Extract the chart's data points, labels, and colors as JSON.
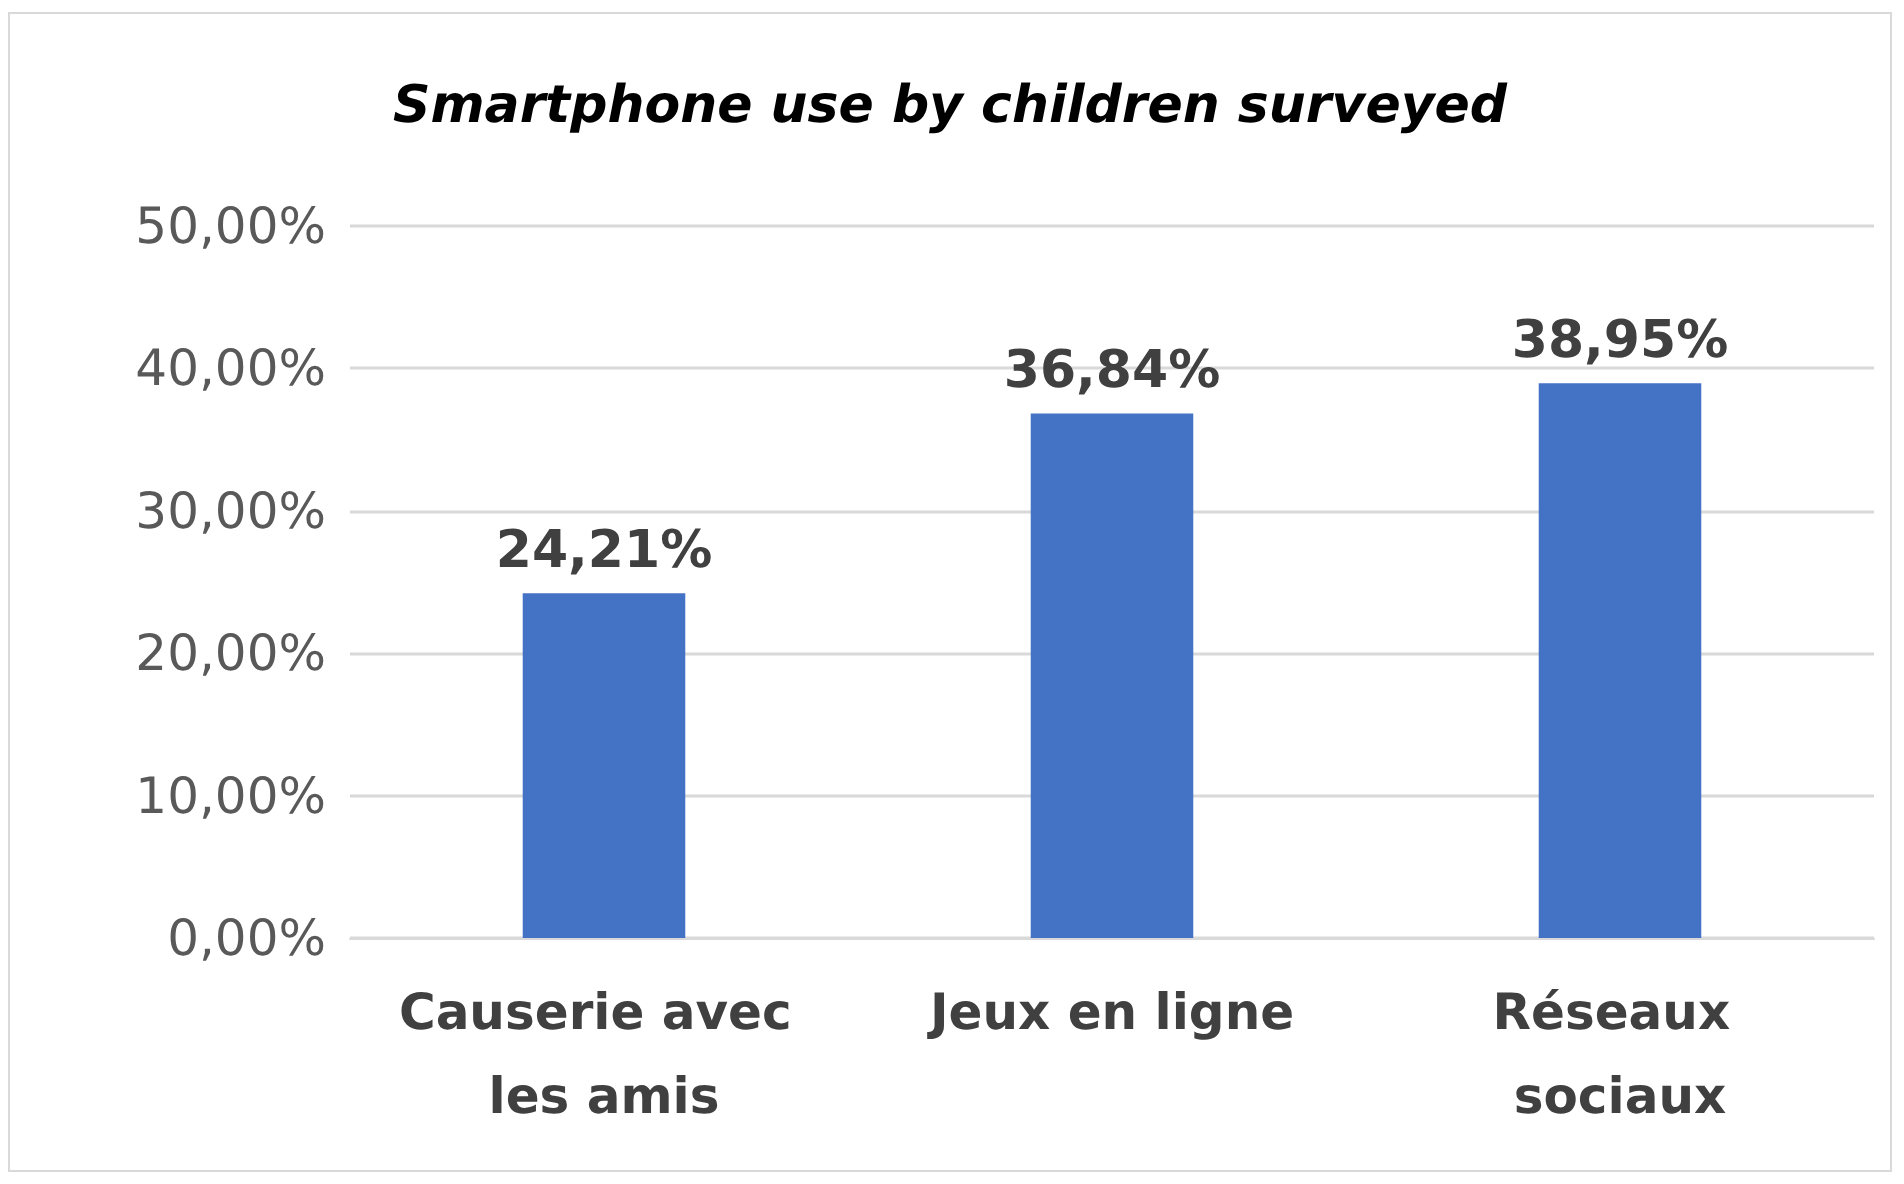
{
  "chart_data": {
    "type": "bar",
    "title": "Smartphone use by children surveyed",
    "categories": [
      "Causerie avec les amis",
      "Jeux en ligne",
      "Réseaux sociaux"
    ],
    "values": [
      24.21,
      36.84,
      38.95
    ],
    "color": "#4472c4",
    "value_labels": [
      "24,21%",
      "36,84%",
      "38,95%"
    ],
    "ylim": [
      0,
      50
    ],
    "yticks": [
      {
        "value": 0,
        "label": "0,00%"
      },
      {
        "value": 10,
        "label": "10,00%"
      },
      {
        "value": 20,
        "label": "20,00%"
      },
      {
        "value": 30,
        "label": "30,00%"
      },
      {
        "value": 40,
        "label": "40,00%"
      },
      {
        "value": 50,
        "label": "50,00%"
      }
    ],
    "grid": "y"
  }
}
